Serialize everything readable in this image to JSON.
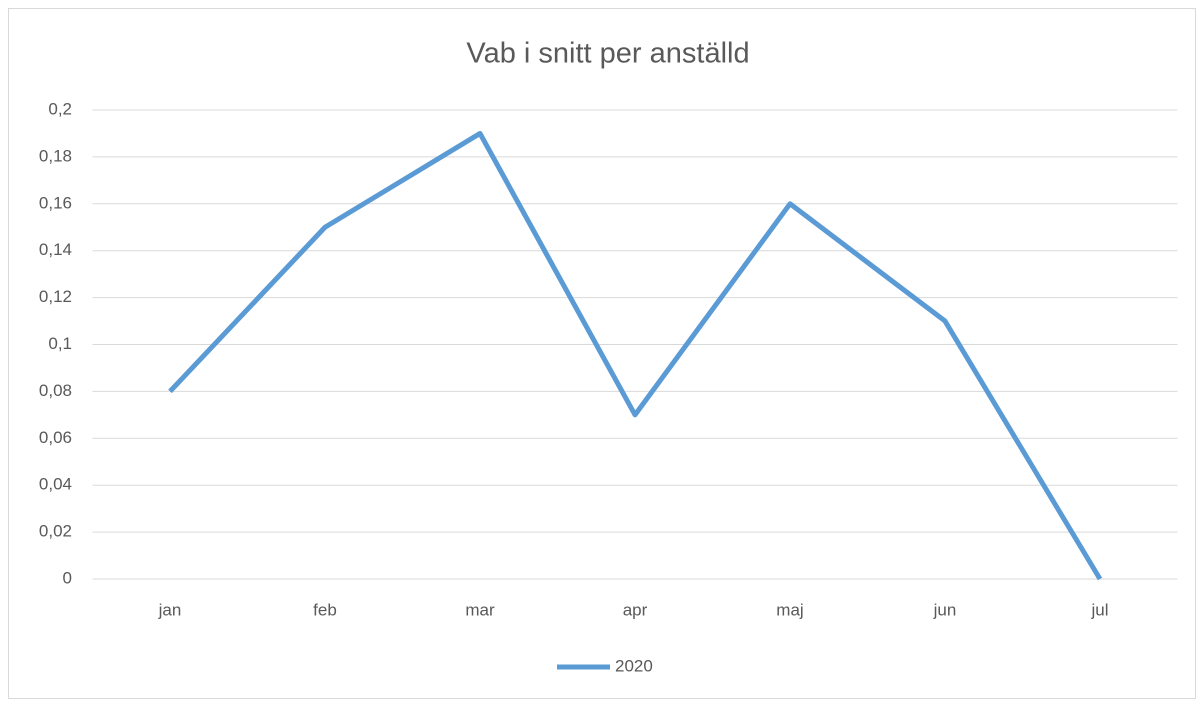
{
  "chart_data": {
    "type": "line",
    "title": "Vab i snitt per anställd",
    "categories": [
      "jan",
      "feb",
      "mar",
      "apr",
      "maj",
      "jun",
      "jul"
    ],
    "series": [
      {
        "name": "2020",
        "color": "#5b9bd5",
        "values": [
          0.08,
          0.15,
          0.19,
          0.07,
          0.16,
          0.11,
          0
        ]
      }
    ],
    "ylim": [
      0,
      0.2
    ],
    "yticks": [
      0,
      {
        "value": 0.02,
        "label": "0,02"
      },
      {
        "value": 0.04,
        "label": "0,04"
      },
      {
        "value": 0.06,
        "label": "0,06"
      },
      {
        "value": 0.08,
        "label": "0,08"
      },
      {
        "value": 0.1,
        "label": "0,1"
      },
      {
        "value": 0.12,
        "label": "0,12"
      },
      {
        "value": 0.14,
        "label": "0,14"
      },
      {
        "value": 0.16,
        "label": "0,16"
      },
      {
        "value": 0.18,
        "label": "0,18"
      },
      {
        "value": 0.2,
        "label": "0,2"
      }
    ],
    "grid": true,
    "legend": "bottom"
  }
}
